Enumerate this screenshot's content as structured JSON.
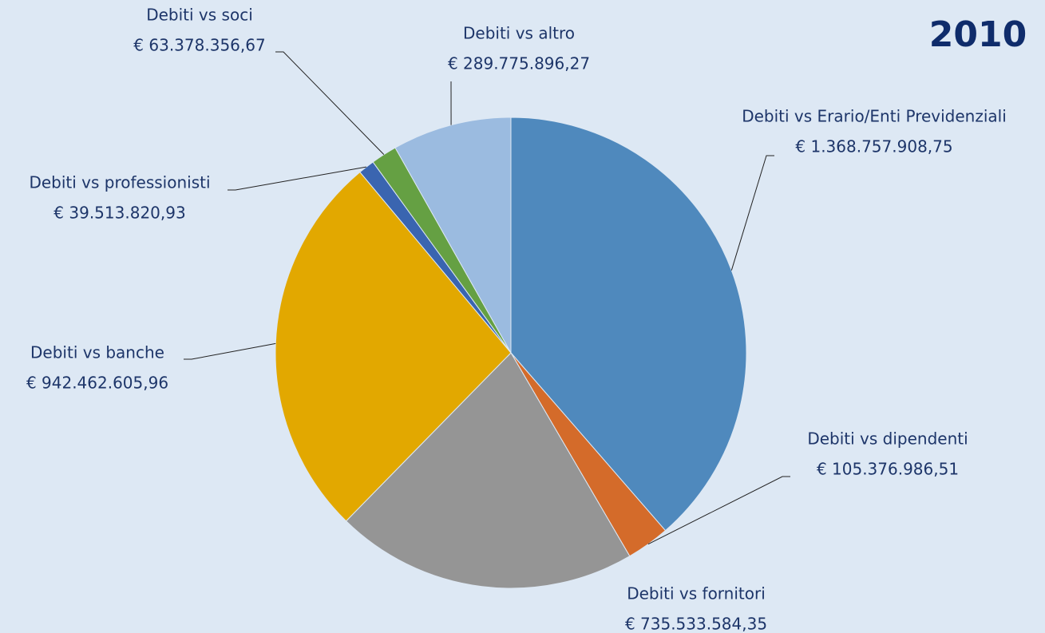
{
  "chart_data": {
    "type": "pie",
    "title": "2010",
    "categories": [
      "Debiti vs Erario/Enti Previdenziali",
      "Debiti vs dipendenti",
      "Debiti vs fornitori",
      "Debiti vs banche",
      "Debiti vs professionisti",
      "Debiti vs soci",
      "Debiti vs altro"
    ],
    "values": [
      1368757908.75,
      105376986.51,
      735533584.35,
      942462605.96,
      39513820.93,
      63378356.67,
      289775896.27
    ],
    "value_labels": [
      "€ 1.368.757.908,75",
      "€ 105.376.986,51",
      "€ 735.533.584,35",
      "€ 942.462.605,96",
      "€ 39.513.820,93",
      "€ 63.378.356,67",
      "€ 289.775.896,27"
    ],
    "colors": [
      "#4f89bd",
      "#d46b2a",
      "#959595",
      "#e2a800",
      "#3a65b0",
      "#65a043",
      "#9bbbe0"
    ]
  }
}
